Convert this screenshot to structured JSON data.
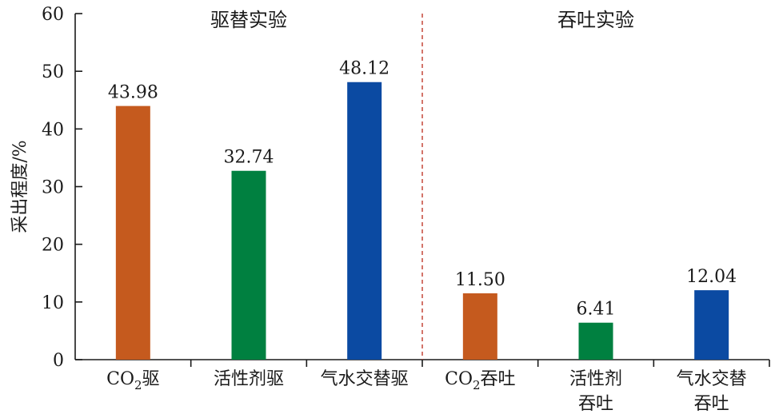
{
  "chart_data": {
    "type": "bar",
    "ylabel": "采出程度/%",
    "ylim": [
      0,
      60
    ],
    "yticks": [
      0,
      10,
      20,
      30,
      40,
      50,
      60
    ],
    "groups": [
      {
        "label": "驱替实验",
        "span": [
          0,
          2
        ]
      },
      {
        "label": "吞吐实验",
        "span": [
          3,
          5
        ]
      }
    ],
    "divider_after_index": 2,
    "categories": [
      {
        "base": "CO",
        "sub": "2",
        "rest": "驱"
      },
      {
        "lines": [
          "活性剂驱"
        ]
      },
      {
        "lines": [
          "气水交替驱"
        ]
      },
      {
        "base": "CO",
        "sub": "2",
        "rest": "吞吐"
      },
      {
        "lines": [
          "活性剂",
          "吞吐"
        ]
      },
      {
        "lines": [
          "气水交替",
          "吞吐"
        ]
      }
    ],
    "values": [
      43.98,
      32.74,
      48.12,
      11.5,
      6.41,
      12.04
    ],
    "value_labels": [
      "43.98",
      "32.74",
      "48.12",
      "11.50",
      "6.41",
      "12.04"
    ],
    "colors": [
      "#c55a1e",
      "#008040",
      "#0b4aa2",
      "#c55a1e",
      "#008040",
      "#0b4aa2"
    ],
    "divider_color": "#c0392b",
    "grid": false
  }
}
